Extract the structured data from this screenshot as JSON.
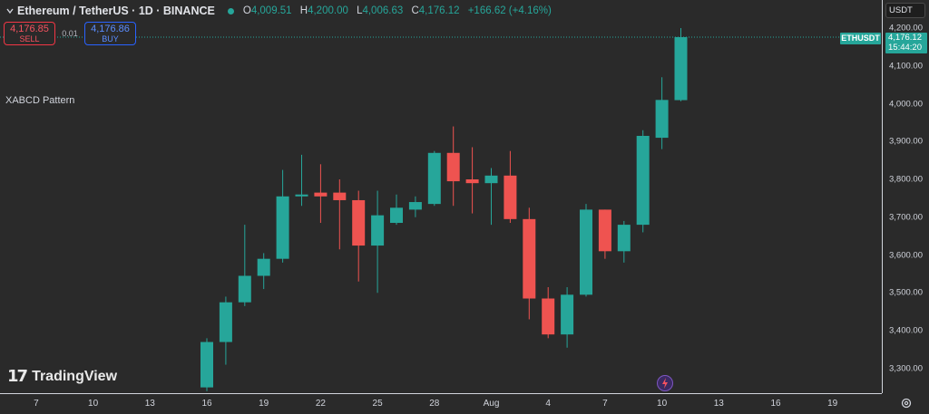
{
  "header": {
    "symbol_title": "Ethereum / TetherUS · 1D · BINANCE",
    "ohlc": {
      "o_label": "O",
      "o": "4,009.51",
      "h_label": "H",
      "h": "4,200.00",
      "l_label": "L",
      "l": "4,006.63",
      "c_label": "C",
      "c": "4,176.12",
      "change": "+166.62 (+4.16%)"
    },
    "status_color": "#26a69a"
  },
  "trade": {
    "sell_price": "4,176.85",
    "sell_label": "SELL",
    "qty": "0.01",
    "buy_price": "4,176.86",
    "buy_label": "BUY"
  },
  "indicator": {
    "label": "XABCD Pattern"
  },
  "branding": {
    "logo_mark": "17",
    "logo_text": "TradingView"
  },
  "price_axis": {
    "currency": "USDT",
    "ticks": [
      "4,200.00",
      "4,100.00",
      "4,000.00",
      "3,900.00",
      "3,800.00",
      "3,700.00",
      "3,600.00",
      "3,500.00",
      "3,400.00",
      "3,300.00"
    ],
    "last_price_tag": {
      "ticker": "ETHUSDT",
      "price": "4,176.12",
      "countdown": "15:44:20"
    }
  },
  "time_axis": {
    "ticks": [
      "7",
      "10",
      "13",
      "16",
      "19",
      "22",
      "25",
      "28",
      "Aug",
      "4",
      "7",
      "10",
      "13",
      "16",
      "19"
    ]
  },
  "colors": {
    "up": "#26a69a",
    "down": "#ef5350",
    "background": "#2a2a2a"
  },
  "icons": {
    "settings": "gear-icon",
    "event": "lightning-icon"
  },
  "chart_data": {
    "type": "candlestick",
    "title": "Ethereum / TetherUS · 1D · BINANCE",
    "y_unit": "USDT",
    "ylim": [
      3250,
      4230
    ],
    "x_ticks": [
      "7",
      "10",
      "13",
      "16",
      "19",
      "22",
      "25",
      "28",
      "Aug",
      "4",
      "7",
      "10",
      "13",
      "16",
      "19"
    ],
    "candles": [
      {
        "date": "Jul 16",
        "o": 3250,
        "h": 3380,
        "l": 3240,
        "c": 3370
      },
      {
        "date": "Jul 17",
        "o": 3370,
        "h": 3490,
        "l": 3310,
        "c": 3475
      },
      {
        "date": "Jul 18",
        "o": 3475,
        "h": 3680,
        "l": 3465,
        "c": 3545
      },
      {
        "date": "Jul 19",
        "o": 3545,
        "h": 3605,
        "l": 3510,
        "c": 3590
      },
      {
        "date": "Jul 20",
        "o": 3590,
        "h": 3825,
        "l": 3580,
        "c": 3755
      },
      {
        "date": "Jul 21",
        "o": 3755,
        "h": 3865,
        "l": 3730,
        "c": 3760
      },
      {
        "date": "Jul 22",
        "o": 3765,
        "h": 3840,
        "l": 3685,
        "c": 3755
      },
      {
        "date": "Jul 23",
        "o": 3765,
        "h": 3800,
        "l": 3615,
        "c": 3745
      },
      {
        "date": "Jul 24",
        "o": 3745,
        "h": 3770,
        "l": 3530,
        "c": 3625
      },
      {
        "date": "Jul 25",
        "o": 3625,
        "h": 3770,
        "l": 3500,
        "c": 3705
      },
      {
        "date": "Jul 26",
        "o": 3685,
        "h": 3760,
        "l": 3680,
        "c": 3725
      },
      {
        "date": "Jul 27",
        "o": 3720,
        "h": 3755,
        "l": 3700,
        "c": 3740
      },
      {
        "date": "Jul 28",
        "o": 3735,
        "h": 3875,
        "l": 3730,
        "c": 3870
      },
      {
        "date": "Jul 29",
        "o": 3870,
        "h": 3940,
        "l": 3730,
        "c": 3795
      },
      {
        "date": "Jul 30",
        "o": 3800,
        "h": 3885,
        "l": 3710,
        "c": 3790
      },
      {
        "date": "Jul 31",
        "o": 3790,
        "h": 3830,
        "l": 3680,
        "c": 3810
      },
      {
        "date": "Aug 1",
        "o": 3810,
        "h": 3875,
        "l": 3685,
        "c": 3695
      },
      {
        "date": "Aug 2",
        "o": 3695,
        "h": 3725,
        "l": 3430,
        "c": 3485
      },
      {
        "date": "Aug 3",
        "o": 3485,
        "h": 3515,
        "l": 3380,
        "c": 3390
      },
      {
        "date": "Aug 4",
        "o": 3390,
        "h": 3515,
        "l": 3355,
        "c": 3495
      },
      {
        "date": "Aug 5",
        "o": 3495,
        "h": 3735,
        "l": 3490,
        "c": 3720
      },
      {
        "date": "Aug 6",
        "o": 3720,
        "h": 3720,
        "l": 3590,
        "c": 3610
      },
      {
        "date": "Aug 7",
        "o": 3610,
        "h": 3690,
        "l": 3580,
        "c": 3680
      },
      {
        "date": "Aug 8",
        "o": 3680,
        "h": 3930,
        "l": 3660,
        "c": 3915
      },
      {
        "date": "Aug 9",
        "o": 3910,
        "h": 4070,
        "l": 3880,
        "c": 4010
      },
      {
        "date": "Aug 10",
        "o": 4009.51,
        "h": 4200,
        "l": 4006.63,
        "c": 4176.12
      }
    ],
    "last_price": 4176.12,
    "grid": false,
    "legend": "top-left"
  }
}
